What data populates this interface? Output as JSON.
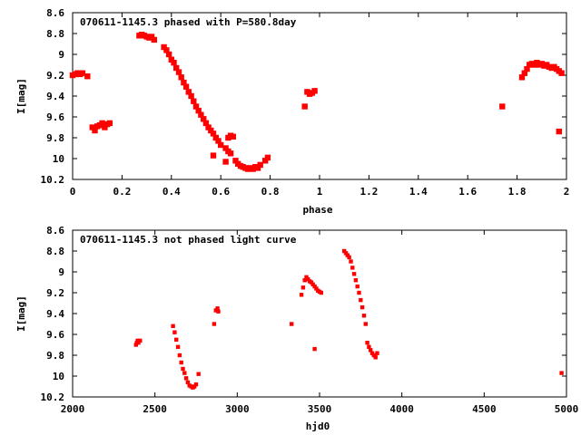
{
  "chart_data": [
    {
      "type": "scatter",
      "title": "070611-1145.3 phased with P=580.8day",
      "xlabel": "phase",
      "ylabel": "I[mag]",
      "xlim": [
        0,
        2
      ],
      "ylim": [
        10.2,
        8.6
      ],
      "y_inverted": true,
      "grid": false,
      "marker_color": "#ff0000",
      "xticks": [
        "0",
        "0.2",
        "0.4",
        "0.6",
        "0.8",
        "1",
        "1.2",
        "1.4",
        "1.6",
        "1.8",
        "2"
      ],
      "yticks": [
        "8.6",
        "8.8",
        "9",
        "9.2",
        "9.4",
        "9.6",
        "9.8",
        "10",
        "10.2"
      ],
      "points": [
        [
          0.0,
          9.2
        ],
        [
          0.01,
          9.19
        ],
        [
          0.02,
          9.18
        ],
        [
          0.03,
          9.19
        ],
        [
          0.04,
          9.18
        ],
        [
          0.06,
          9.21
        ],
        [
          0.08,
          9.7
        ],
        [
          0.09,
          9.73
        ],
        [
          0.1,
          9.69
        ],
        [
          0.11,
          9.68
        ],
        [
          0.12,
          9.66
        ],
        [
          0.13,
          9.7
        ],
        [
          0.14,
          9.67
        ],
        [
          0.15,
          9.66
        ],
        [
          0.27,
          8.82
        ],
        [
          0.28,
          8.81
        ],
        [
          0.29,
          8.82
        ],
        [
          0.3,
          8.83
        ],
        [
          0.31,
          8.84
        ],
        [
          0.32,
          8.83
        ],
        [
          0.33,
          8.86
        ],
        [
          0.37,
          8.93
        ],
        [
          0.38,
          8.96
        ],
        [
          0.39,
          9.0
        ],
        [
          0.4,
          9.05
        ],
        [
          0.41,
          9.08
        ],
        [
          0.42,
          9.13
        ],
        [
          0.43,
          9.17
        ],
        [
          0.44,
          9.22
        ],
        [
          0.45,
          9.27
        ],
        [
          0.46,
          9.31
        ],
        [
          0.47,
          9.36
        ],
        [
          0.48,
          9.4
        ],
        [
          0.49,
          9.45
        ],
        [
          0.5,
          9.5
        ],
        [
          0.51,
          9.54
        ],
        [
          0.52,
          9.58
        ],
        [
          0.53,
          9.62
        ],
        [
          0.54,
          9.66
        ],
        [
          0.55,
          9.7
        ],
        [
          0.56,
          9.73
        ],
        [
          0.57,
          9.76
        ],
        [
          0.58,
          9.8
        ],
        [
          0.59,
          9.83
        ],
        [
          0.6,
          9.87
        ],
        [
          0.62,
          9.9
        ],
        [
          0.63,
          9.93
        ],
        [
          0.64,
          9.95
        ],
        [
          0.63,
          9.8
        ],
        [
          0.64,
          9.78
        ],
        [
          0.65,
          9.79
        ],
        [
          0.57,
          9.97
        ],
        [
          0.62,
          10.03
        ],
        [
          0.66,
          10.02
        ],
        [
          0.67,
          10.05
        ],
        [
          0.68,
          10.07
        ],
        [
          0.69,
          10.08
        ],
        [
          0.7,
          10.09
        ],
        [
          0.71,
          10.1
        ],
        [
          0.72,
          10.09
        ],
        [
          0.73,
          10.1
        ],
        [
          0.74,
          10.08
        ],
        [
          0.75,
          10.09
        ],
        [
          0.76,
          10.06
        ],
        [
          0.78,
          10.02
        ],
        [
          0.79,
          9.99
        ],
        [
          0.94,
          9.5
        ],
        [
          0.95,
          9.36
        ],
        [
          0.96,
          9.38
        ],
        [
          0.97,
          9.37
        ],
        [
          0.98,
          9.35
        ],
        [
          1.74,
          9.5
        ],
        [
          1.82,
          9.22
        ],
        [
          1.83,
          9.18
        ],
        [
          1.84,
          9.14
        ],
        [
          1.85,
          9.1
        ],
        [
          1.86,
          9.09
        ],
        [
          1.87,
          9.1
        ],
        [
          1.88,
          9.08
        ],
        [
          1.89,
          9.1
        ],
        [
          1.9,
          9.09
        ],
        [
          1.91,
          9.11
        ],
        [
          1.92,
          9.1
        ],
        [
          1.93,
          9.12
        ],
        [
          1.94,
          9.13
        ],
        [
          1.95,
          9.12
        ],
        [
          1.96,
          9.14
        ],
        [
          1.97,
          9.16
        ],
        [
          1.98,
          9.18
        ],
        [
          1.97,
          9.74
        ]
      ]
    },
    {
      "type": "scatter",
      "title": "070611-1145.3 not phased light curve",
      "xlabel": "hjd0",
      "ylabel": "I[mag]",
      "xlim": [
        2000,
        5000
      ],
      "ylim": [
        10.2,
        8.6
      ],
      "y_inverted": true,
      "grid": false,
      "marker_color": "#ff0000",
      "xticks": [
        "2000",
        "2500",
        "3000",
        "3500",
        "4000",
        "4500",
        "5000"
      ],
      "yticks": [
        "8.6",
        "8.8",
        "9",
        "9.2",
        "9.4",
        "9.6",
        "9.8",
        "10",
        "10.2"
      ],
      "points": [
        [
          2385,
          9.7
        ],
        [
          2390,
          9.68
        ],
        [
          2395,
          9.66
        ],
        [
          2400,
          9.68
        ],
        [
          2410,
          9.66
        ],
        [
          2610,
          9.52
        ],
        [
          2620,
          9.58
        ],
        [
          2630,
          9.65
        ],
        [
          2640,
          9.72
        ],
        [
          2650,
          9.8
        ],
        [
          2660,
          9.87
        ],
        [
          2670,
          9.93
        ],
        [
          2680,
          9.97
        ],
        [
          2690,
          10.02
        ],
        [
          2700,
          10.06
        ],
        [
          2710,
          10.09
        ],
        [
          2720,
          10.1
        ],
        [
          2730,
          10.11
        ],
        [
          2740,
          10.1
        ],
        [
          2750,
          10.08
        ],
        [
          2765,
          9.98
        ],
        [
          2860,
          9.5
        ],
        [
          2870,
          9.37
        ],
        [
          2880,
          9.35
        ],
        [
          2885,
          9.38
        ],
        [
          3330,
          9.5
        ],
        [
          3390,
          9.22
        ],
        [
          3400,
          9.15
        ],
        [
          3410,
          9.08
        ],
        [
          3420,
          9.05
        ],
        [
          3430,
          9.07
        ],
        [
          3440,
          9.09
        ],
        [
          3450,
          9.1
        ],
        [
          3460,
          9.12
        ],
        [
          3470,
          9.14
        ],
        [
          3480,
          9.16
        ],
        [
          3490,
          9.18
        ],
        [
          3500,
          9.19
        ],
        [
          3510,
          9.2
        ],
        [
          3470,
          9.74
        ],
        [
          3650,
          8.8
        ],
        [
          3660,
          8.82
        ],
        [
          3670,
          8.84
        ],
        [
          3680,
          8.86
        ],
        [
          3690,
          8.9
        ],
        [
          3700,
          8.96
        ],
        [
          3710,
          9.02
        ],
        [
          3720,
          9.08
        ],
        [
          3730,
          9.14
        ],
        [
          3740,
          9.2
        ],
        [
          3750,
          9.27
        ],
        [
          3760,
          9.34
        ],
        [
          3770,
          9.42
        ],
        [
          3780,
          9.5
        ],
        [
          3790,
          9.68
        ],
        [
          3800,
          9.72
        ],
        [
          3810,
          9.75
        ],
        [
          3820,
          9.78
        ],
        [
          3830,
          9.8
        ],
        [
          3840,
          9.82
        ],
        [
          3850,
          9.78
        ],
        [
          4970,
          9.97
        ]
      ]
    }
  ]
}
